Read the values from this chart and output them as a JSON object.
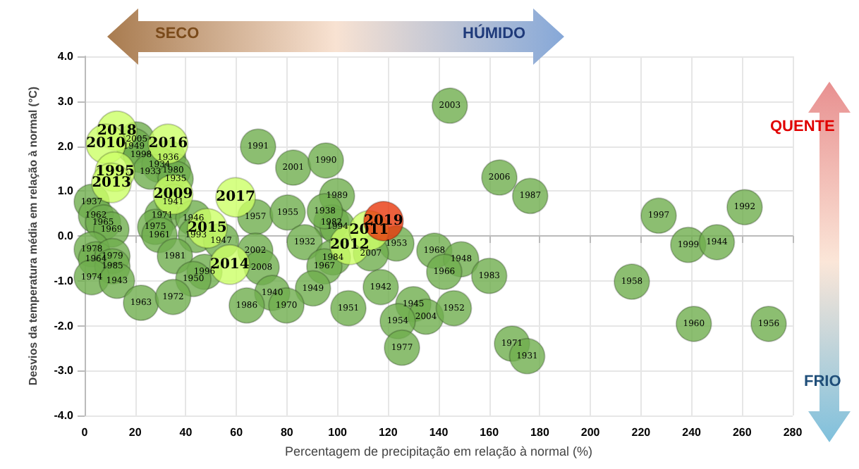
{
  "chart_data": {
    "type": "bubble",
    "xlabel": "Percentagem de precipitação em relação à normal (%)",
    "ylabel": "Desvios da temperatura média em relação à normal (°C)",
    "xlim": [
      0,
      280
    ],
    "xticks": [
      0,
      20,
      40,
      60,
      80,
      100,
      120,
      140,
      160,
      180,
      200,
      220,
      240,
      260,
      280
    ],
    "ylim": [
      -4,
      4
    ],
    "yticks": [
      {
        "value": -4,
        "label": "-4.0"
      },
      {
        "value": -3,
        "label": "-3.0"
      },
      {
        "value": -2,
        "label": "-2.0"
      },
      {
        "value": -1,
        "label": "-1.0"
      },
      {
        "value": 0,
        "label": "0.0"
      },
      {
        "value": 1,
        "label": "1.0"
      },
      {
        "value": 2,
        "label": "2.0"
      },
      {
        "value": 3,
        "label": "3.0"
      },
      {
        "value": 4,
        "label": "4.0"
      }
    ],
    "grid": true,
    "marker": "circle",
    "series": [
      {
        "color": "#6fae4e",
        "x": [
          20.6,
          19.5,
          22.3,
          33,
          29.6,
          35,
          26,
          36,
          35,
          2.8,
          4.5,
          7.3,
          10.6,
          30.7,
          27.9,
          29.6,
          43,
          44,
          2.8,
          4.5,
          11,
          11,
          2.8,
          12.8,
          35.7,
          47.4,
          43,
          22.3,
          35,
          68.6,
          82.5,
          95.4,
          67.5,
          80.3,
          99.8,
          97.6,
          100,
          95,
          87,
          54,
          67.5,
          70,
          98.2,
          94.8,
          90.3,
          74.2,
          64.1,
          79.8,
          104.3,
          144.4,
          164,
          176.2,
          123.3,
          113.2,
          138.3,
          148.9,
          142.2,
          160,
          117.1,
          130,
          135,
          146,
          123.8,
          125.5,
          169,
          175,
          227,
          261,
          238.7,
          250,
          216.4,
          240.9,
          270.5
        ],
        "values": [
          2.15,
          2.0,
          1.8,
          1.74,
          1.58,
          1.46,
          1.43,
          1.27,
          0.76,
          0.76,
          0.45,
          0.3,
          0.14,
          0.45,
          0.2,
          0.02,
          0.4,
          0.02,
          -0.3,
          -0.52,
          -0.45,
          -0.68,
          -0.92,
          -1.0,
          -0.45,
          -0.8,
          -0.96,
          -1.49,
          -1.36,
          1.99,
          1.52,
          1.68,
          0.42,
          0.52,
          0.89,
          0.3,
          0.2,
          0.55,
          -0.14,
          -0.11,
          -0.33,
          -0.7,
          -0.48,
          -0.68,
          -1.17,
          -1.27,
          -1.55,
          -1.55,
          -1.61,
          2.9,
          1.3,
          0.89,
          -0.17,
          -0.39,
          -0.33,
          -0.52,
          -0.8,
          -0.89,
          -1.14,
          -1.52,
          -1.8,
          -1.61,
          -1.9,
          -2.49,
          -2.4,
          -2.68,
          0.45,
          0.64,
          -0.2,
          -0.14,
          -1.02,
          -1.96,
          -1.96
        ]
      },
      {
        "color": "#ccff66",
        "x": [
          12.8,
          8.4,
          33,
          12,
          10.6,
          35,
          48.5,
          59.7,
          57.4,
          104.8,
          112.5
        ],
        "values": [
          2.34,
          2.05,
          2.05,
          1.43,
          1.18,
          0.92,
          0.17,
          0.86,
          -0.64,
          -0.2,
          0.12
        ]
      },
      {
        "color": "#e8380d",
        "x": [
          118.2
        ],
        "values": [
          0.33
        ]
      }
    ],
    "annotations": [
      "SECO",
      "HÚMIDO",
      "QUENTE",
      "FRIO",
      {
        "text": "2005",
        "x": 20.6,
        "y": 2.15
      },
      {
        "text": "1949",
        "x": 19.5,
        "y": 2.0
      },
      {
        "text": "1998",
        "x": 22.3,
        "y": 1.8
      },
      {
        "text": "1936",
        "x": 33,
        "y": 1.74
      },
      {
        "text": "1934",
        "x": 29.6,
        "y": 1.58
      },
      {
        "text": "1980",
        "x": 35,
        "y": 1.46
      },
      {
        "text": "1933",
        "x": 26,
        "y": 1.43
      },
      {
        "text": "1935",
        "x": 36,
        "y": 1.27
      },
      {
        "text": "1941",
        "x": 35,
        "y": 0.76
      },
      {
        "text": "1937",
        "x": 2.8,
        "y": 0.76
      },
      {
        "text": "1962",
        "x": 4.5,
        "y": 0.45
      },
      {
        "text": "1965",
        "x": 7.3,
        "y": 0.3
      },
      {
        "text": "1969",
        "x": 10.6,
        "y": 0.14
      },
      {
        "text": "1971",
        "x": 30.7,
        "y": 0.45
      },
      {
        "text": "1975",
        "x": 27.9,
        "y": 0.2
      },
      {
        "text": "1961",
        "x": 29.6,
        "y": 0.02
      },
      {
        "text": "1946",
        "x": 43,
        "y": 0.4
      },
      {
        "text": "1993",
        "x": 44,
        "y": 0.02
      },
      {
        "text": "1978",
        "x": 2.8,
        "y": -0.3
      },
      {
        "text": "1964",
        "x": 4.5,
        "y": -0.52
      },
      {
        "text": "1979",
        "x": 11,
        "y": -0.45
      },
      {
        "text": "1985",
        "x": 11,
        "y": -0.68
      },
      {
        "text": "1974",
        "x": 2.8,
        "y": -0.92
      },
      {
        "text": "1943",
        "x": 12.8,
        "y": -1.0
      },
      {
        "text": "1981",
        "x": 35.7,
        "y": -0.45
      },
      {
        "text": "1996",
        "x": 47.4,
        "y": -0.8
      },
      {
        "text": "1950",
        "x": 43,
        "y": -0.96
      },
      {
        "text": "1963",
        "x": 22.3,
        "y": -1.49
      },
      {
        "text": "1972",
        "x": 35,
        "y": -1.36
      },
      {
        "text": "1991",
        "x": 68.6,
        "y": 1.99
      },
      {
        "text": "2001",
        "x": 82.5,
        "y": 1.52
      },
      {
        "text": "1990",
        "x": 95.4,
        "y": 1.68
      },
      {
        "text": "1957",
        "x": 67.5,
        "y": 0.42
      },
      {
        "text": "1955",
        "x": 80.3,
        "y": 0.52
      },
      {
        "text": "1989",
        "x": 99.8,
        "y": 0.89
      },
      {
        "text": "1982",
        "x": 97.6,
        "y": 0.3
      },
      {
        "text": "1994",
        "x": 100,
        "y": 0.2
      },
      {
        "text": "1938",
        "x": 95,
        "y": 0.55
      },
      {
        "text": "1932",
        "x": 87,
        "y": -0.14
      },
      {
        "text": "1947",
        "x": 54,
        "y": -0.11
      },
      {
        "text": "2002",
        "x": 67.5,
        "y": -0.33
      },
      {
        "text": "2008",
        "x": 70,
        "y": -0.7
      },
      {
        "text": "1984",
        "x": 98.2,
        "y": -0.48
      },
      {
        "text": "1967",
        "x": 94.8,
        "y": -0.68
      },
      {
        "text": "1949",
        "x": 90.3,
        "y": -1.17
      },
      {
        "text": "1940",
        "x": 74.2,
        "y": -1.27
      },
      {
        "text": "1986",
        "x": 64.1,
        "y": -1.55
      },
      {
        "text": "1970",
        "x": 79.8,
        "y": -1.55
      },
      {
        "text": "1951",
        "x": 104.3,
        "y": -1.61
      },
      {
        "text": "2003",
        "x": 144.4,
        "y": 2.9
      },
      {
        "text": "2006",
        "x": 164,
        "y": 1.3
      },
      {
        "text": "1987",
        "x": 176.2,
        "y": 0.89
      },
      {
        "text": "1953",
        "x": 123.3,
        "y": -0.17
      },
      {
        "text": "2007",
        "x": 113.2,
        "y": -0.39
      },
      {
        "text": "1968",
        "x": 138.3,
        "y": -0.33
      },
      {
        "text": "1948",
        "x": 148.9,
        "y": -0.52
      },
      {
        "text": "1966",
        "x": 142.2,
        "y": -0.8
      },
      {
        "text": "1983",
        "x": 160,
        "y": -0.89
      },
      {
        "text": "1942",
        "x": 117.1,
        "y": -1.14
      },
      {
        "text": "1945",
        "x": 130,
        "y": -1.52
      },
      {
        "text": "2004",
        "x": 135,
        "y": -1.8
      },
      {
        "text": "1952",
        "x": 146,
        "y": -1.61
      },
      {
        "text": "1954",
        "x": 123.8,
        "y": -1.9
      },
      {
        "text": "1977",
        "x": 125.5,
        "y": -2.49
      },
      {
        "text": "1971",
        "x": 169,
        "y": -2.4
      },
      {
        "text": "1931",
        "x": 175,
        "y": -2.68
      },
      {
        "text": "1997",
        "x": 227,
        "y": 0.45
      },
      {
        "text": "1992",
        "x": 261,
        "y": 0.64
      },
      {
        "text": "1999",
        "x": 238.7,
        "y": -0.2
      },
      {
        "text": "1944",
        "x": 250,
        "y": -0.14
      },
      {
        "text": "1958",
        "x": 216.4,
        "y": -1.02
      },
      {
        "text": "1960",
        "x": 240.9,
        "y": -1.96
      },
      {
        "text": "1956",
        "x": 270.5,
        "y": -1.96
      },
      {
        "text": "2018",
        "x": 12.8,
        "y": 2.34
      },
      {
        "text": "2010",
        "x": 8.4,
        "y": 2.05
      },
      {
        "text": "2016",
        "x": 33,
        "y": 2.05
      },
      {
        "text": "1995",
        "x": 12,
        "y": 1.43
      },
      {
        "text": "2013",
        "x": 10.6,
        "y": 1.18
      },
      {
        "text": "2009",
        "x": 35,
        "y": 0.92
      },
      {
        "text": "2015",
        "x": 48.5,
        "y": 0.17
      },
      {
        "text": "2017",
        "x": 59.7,
        "y": 0.86
      },
      {
        "text": "2014",
        "x": 57.4,
        "y": -0.64
      },
      {
        "text": "2012",
        "x": 104.8,
        "y": -0.2
      },
      {
        "text": "2011",
        "x": 112.5,
        "y": 0.12
      },
      {
        "text": "2019",
        "x": 118.2,
        "y": 0.33
      }
    ]
  }
}
